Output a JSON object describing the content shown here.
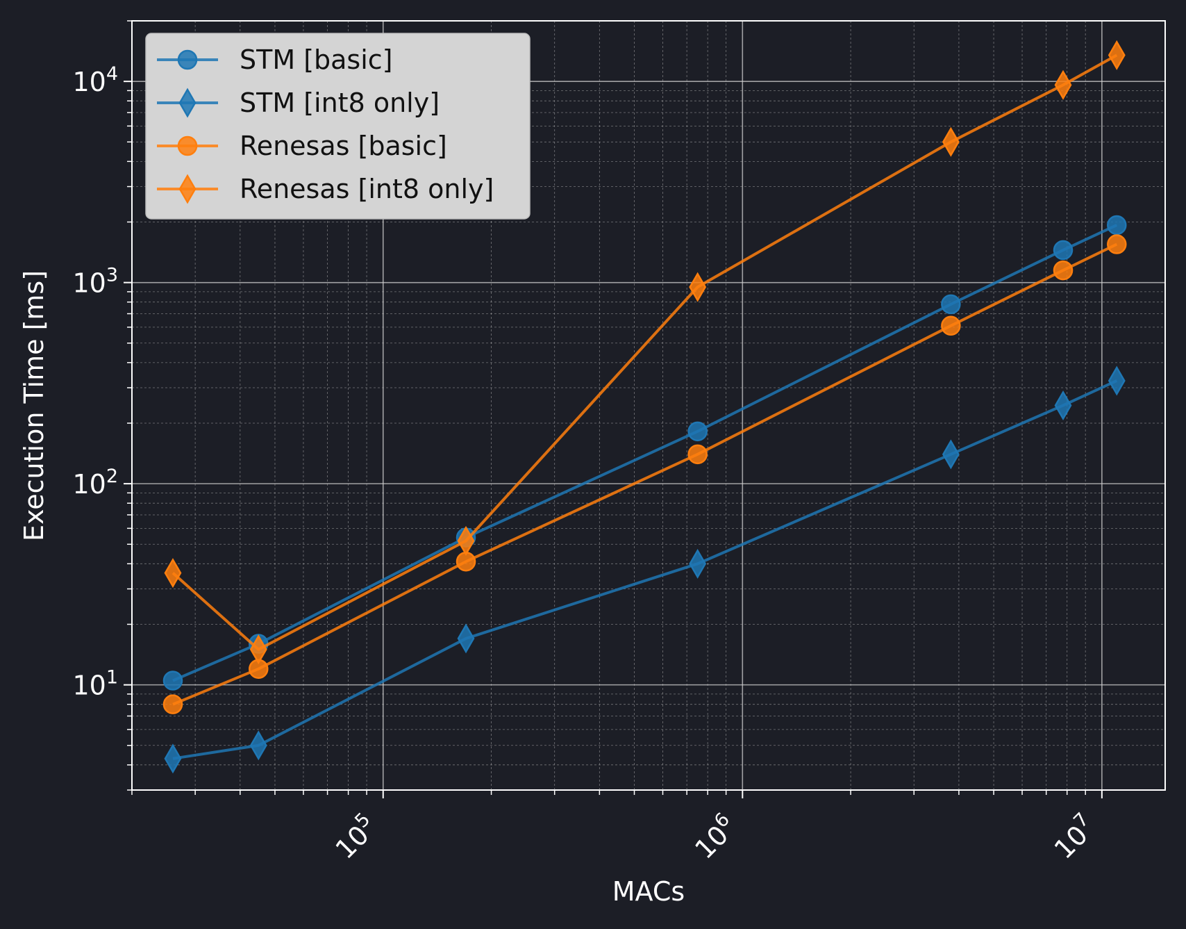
{
  "chart_data": {
    "type": "line",
    "title": "",
    "xlabel": "MACs",
    "ylabel": "Execution Time [ms]",
    "xscale": "log",
    "yscale": "log",
    "xlim": [
      20000,
      15000000
    ],
    "ylim": [
      3,
      20000
    ],
    "grid": true,
    "legend_position": "top-left",
    "x": [
      26000,
      45000,
      170000,
      750000,
      3800000,
      7800000,
      11000000
    ],
    "x_ticks": [
      {
        "value": 100000,
        "base": "10",
        "exp": "5"
      },
      {
        "value": 1000000,
        "base": "10",
        "exp": "6"
      },
      {
        "value": 10000000,
        "base": "10",
        "exp": "7"
      }
    ],
    "y_ticks": [
      {
        "value": 10,
        "base": "10",
        "exp": "1"
      },
      {
        "value": 100,
        "base": "10",
        "exp": "2"
      },
      {
        "value": 1000,
        "base": "10",
        "exp": "3"
      },
      {
        "value": 10000,
        "base": "10",
        "exp": "4"
      }
    ],
    "series": [
      {
        "name": "STM [basic]",
        "color": "#1f77b4",
        "marker": "circle",
        "values": [
          10.5,
          16,
          54,
          182,
          780,
          1450,
          1930
        ]
      },
      {
        "name": "STM [int8 only]",
        "color": "#1f77b4",
        "marker": "diamond",
        "values": [
          4.3,
          5.0,
          17,
          40,
          140,
          245,
          325
        ]
      },
      {
        "name": "Renesas [basic]",
        "color": "#ff7f0e",
        "marker": "circle",
        "values": [
          8.0,
          12,
          41,
          140,
          610,
          1150,
          1550
        ]
      },
      {
        "name": "Renesas [int8 only]",
        "color": "#ff7f0e",
        "marker": "diamond",
        "values": [
          36,
          15,
          52,
          950,
          5000,
          9600,
          13500
        ]
      }
    ]
  }
}
